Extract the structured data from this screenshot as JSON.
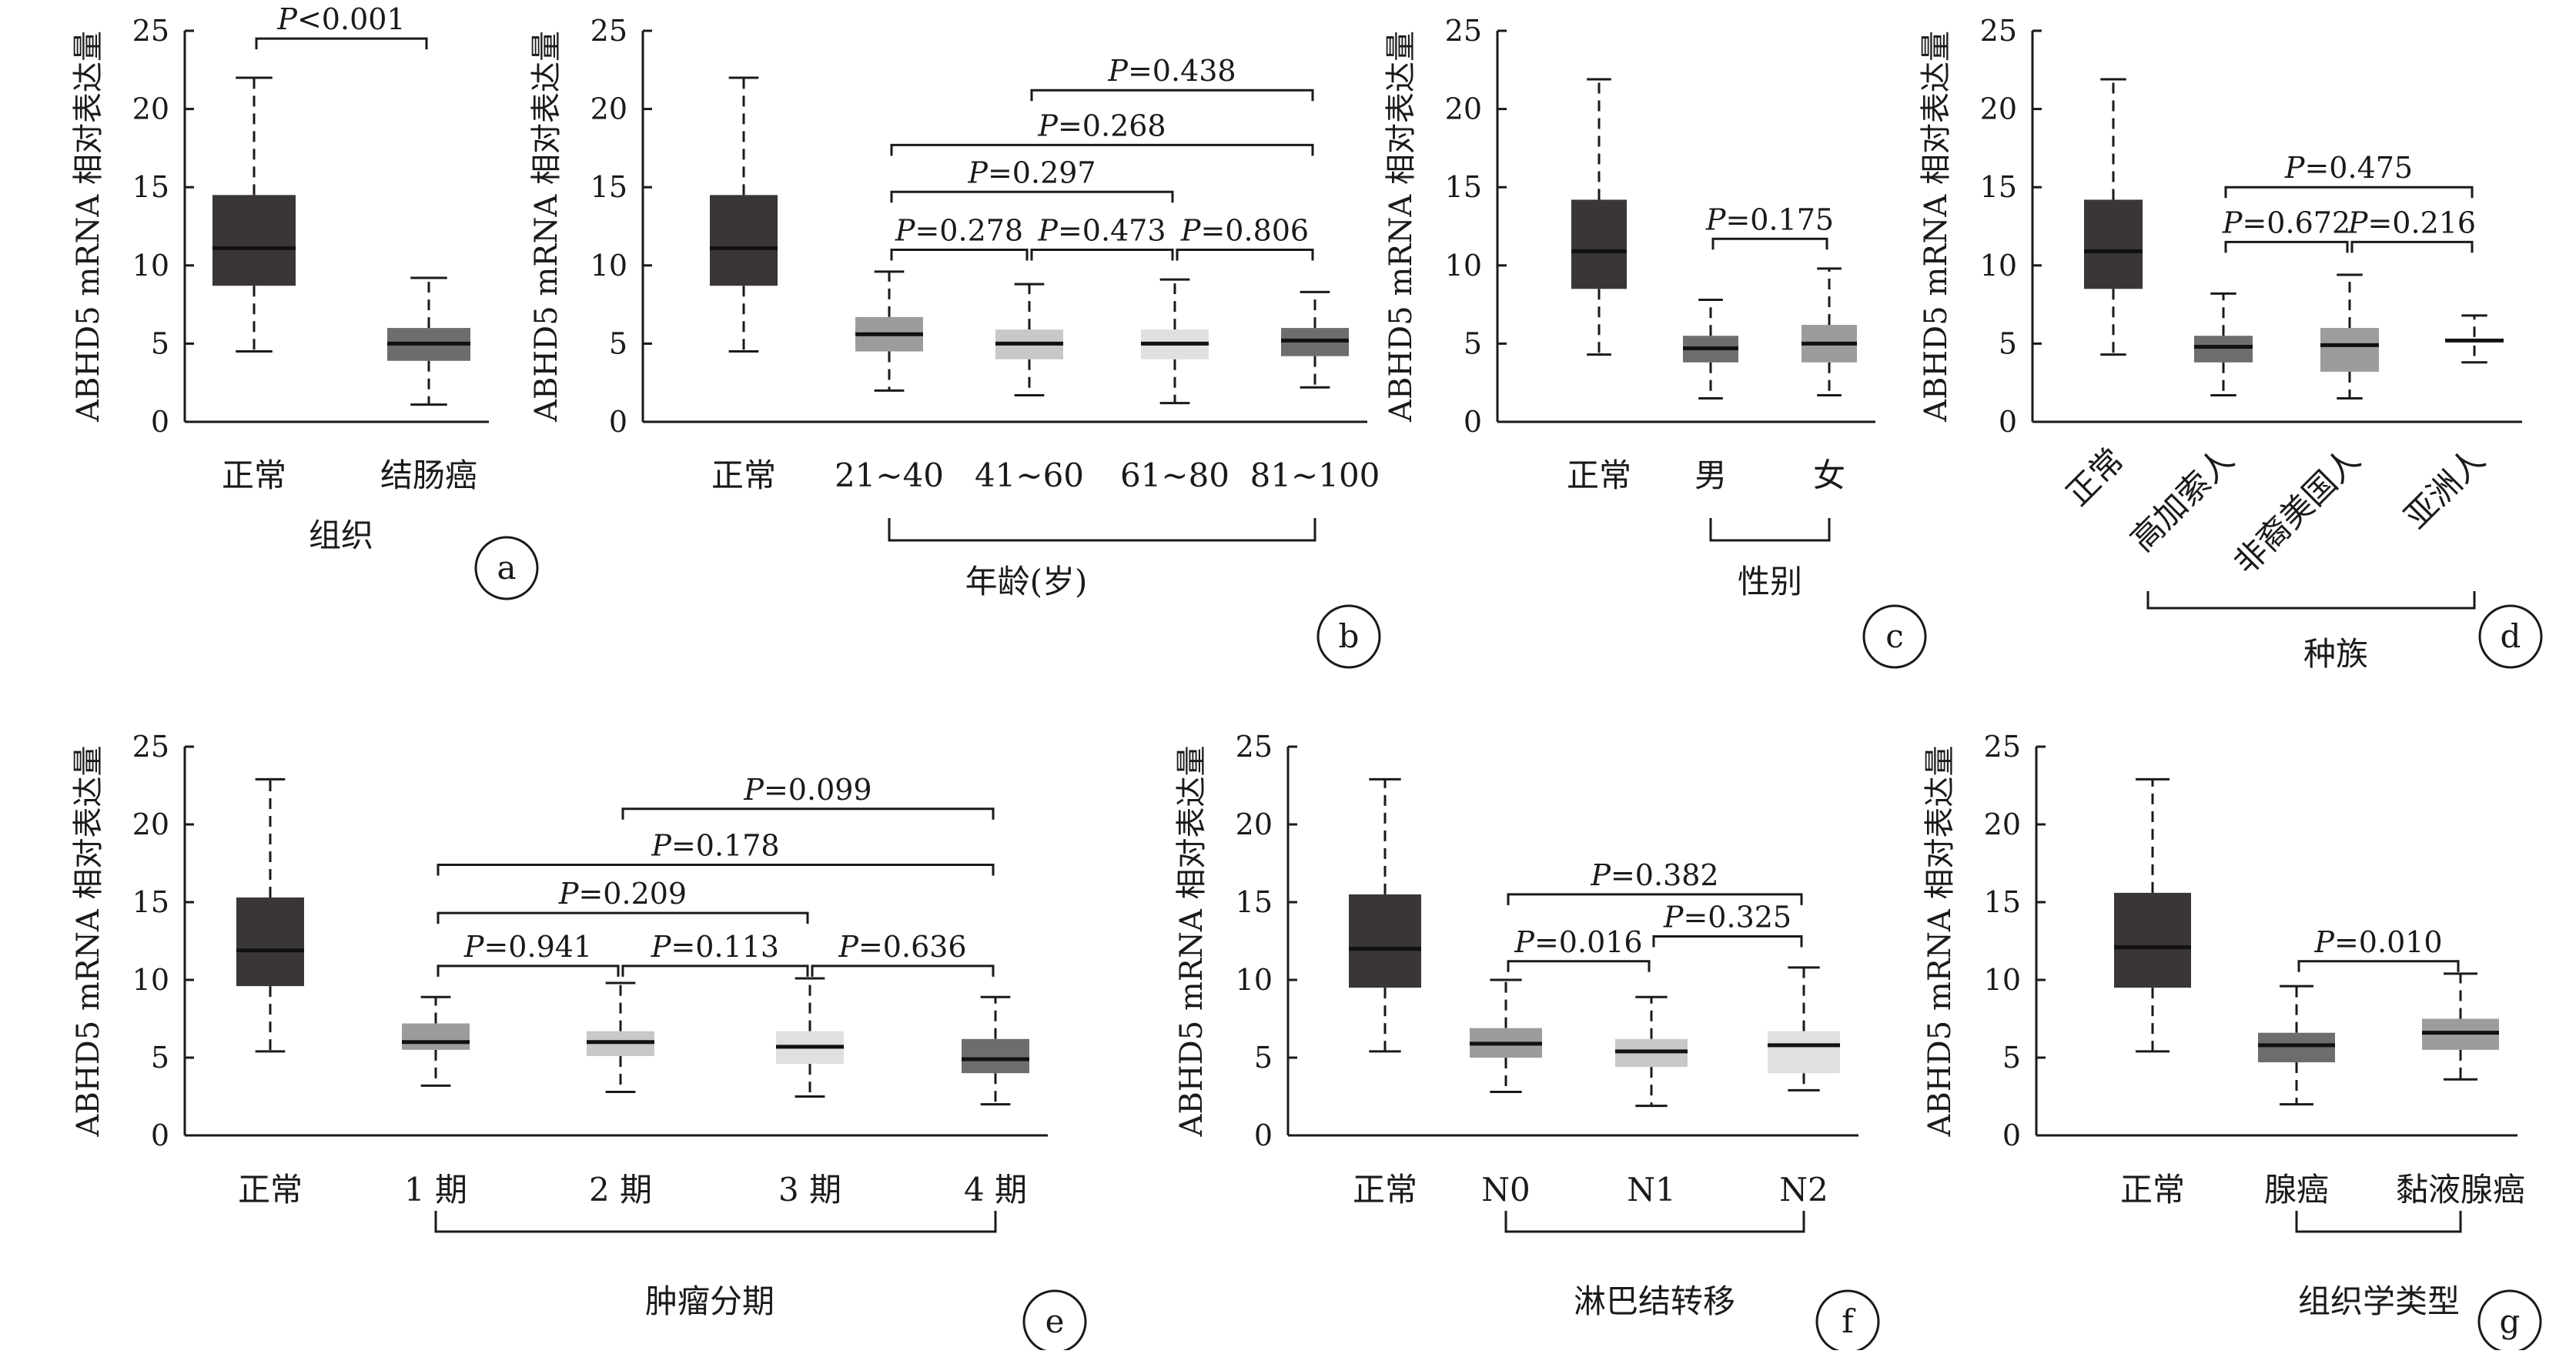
{
  "chart_data": [
    {
      "panel": "a",
      "type": "box",
      "ylabel": "ABHD5 mRNA 相对表达量",
      "xlabel": "组织",
      "ylim": [
        0,
        25
      ],
      "yticks": [
        "0",
        "5",
        "10",
        "15",
        "20",
        "25"
      ],
      "categories": [
        "正常",
        "结肠癌"
      ],
      "boxes": [
        {
          "min": 4.5,
          "q1": 8.7,
          "median": 11.1,
          "q3": 14.5,
          "max": 22.0,
          "color": "#3a3536"
        },
        {
          "min": 1.1,
          "q1": 3.9,
          "median": 5.0,
          "q3": 6.0,
          "max": 9.2,
          "color": "#6d6d6d"
        }
      ],
      "comparisons": [
        {
          "from": 0,
          "to": 1,
          "p": "<0.001",
          "y": 24.5
        }
      ]
    },
    {
      "panel": "b",
      "type": "box",
      "ylabel": "ABHD5 mRNA 相对表达量",
      "xlabel": "年龄(岁)",
      "ylim": [
        0,
        25
      ],
      "yticks": [
        "0",
        "5",
        "10",
        "15",
        "20",
        "25"
      ],
      "categories": [
        "正常",
        "21~40",
        "41~60",
        "61~80",
        "81~100"
      ],
      "boxes": [
        {
          "min": 4.5,
          "q1": 8.7,
          "median": 11.1,
          "q3": 14.5,
          "max": 22.0,
          "color": "#3a3536"
        },
        {
          "min": 2.0,
          "q1": 4.5,
          "median": 5.6,
          "q3": 6.7,
          "max": 9.6,
          "color": "#9c9c9c"
        },
        {
          "min": 1.7,
          "q1": 4.0,
          "median": 5.0,
          "q3": 5.9,
          "max": 8.8,
          "color": "#c8c8c8"
        },
        {
          "min": 1.2,
          "q1": 4.0,
          "median": 5.0,
          "q3": 5.9,
          "max": 9.1,
          "color": "#e0e0e0"
        },
        {
          "min": 2.2,
          "q1": 4.2,
          "median": 5.2,
          "q3": 6.0,
          "max": 8.3,
          "color": "#6d6d6d"
        }
      ],
      "comparisons": [
        {
          "from": 1,
          "to": 2,
          "p": "=0.278",
          "y": 11.0
        },
        {
          "from": 2,
          "to": 3,
          "p": "=0.473",
          "y": 11.0
        },
        {
          "from": 3,
          "to": 4,
          "p": "=0.806",
          "y": 11.0
        },
        {
          "from": 1,
          "to": 3,
          "p": "=0.297",
          "y": 14.7
        },
        {
          "from": 1,
          "to": 4,
          "p": "=0.268",
          "y": 17.7
        },
        {
          "from": 2,
          "to": 4,
          "p": "=0.438",
          "y": 21.2
        }
      ]
    },
    {
      "panel": "c",
      "type": "box",
      "ylabel": "ABHD5 mRNA 相对表达量",
      "xlabel": "性别",
      "ylim": [
        0,
        25
      ],
      "yticks": [
        "0",
        "5",
        "10",
        "15",
        "20",
        "25"
      ],
      "categories": [
        "正常",
        "男",
        "女"
      ],
      "boxes": [
        {
          "min": 4.3,
          "q1": 8.5,
          "median": 10.9,
          "q3": 14.2,
          "max": 21.9,
          "color": "#3a3536"
        },
        {
          "min": 1.5,
          "q1": 3.8,
          "median": 4.7,
          "q3": 5.5,
          "max": 7.8,
          "color": "#6d6d6d"
        },
        {
          "min": 1.7,
          "q1": 3.8,
          "median": 5.0,
          "q3": 6.2,
          "max": 9.8,
          "color": "#9c9c9c"
        }
      ],
      "comparisons": [
        {
          "from": 1,
          "to": 2,
          "p": "=0.175",
          "y": 11.7
        }
      ]
    },
    {
      "panel": "d",
      "type": "box",
      "ylabel": "ABHD5 mRNA 相对表达量",
      "xlabel": "种族",
      "ylim": [
        0,
        25
      ],
      "yticks": [
        "0",
        "5",
        "10",
        "15",
        "20",
        "25"
      ],
      "categories": [
        "正常",
        "高加索人",
        "非裔美国人",
        "亚洲人"
      ],
      "boxes": [
        {
          "min": 4.3,
          "q1": 8.5,
          "median": 10.9,
          "q3": 14.2,
          "max": 21.9,
          "color": "#3a3536"
        },
        {
          "min": 1.7,
          "q1": 3.8,
          "median": 4.8,
          "q3": 5.5,
          "max": 8.2,
          "color": "#6d6d6d"
        },
        {
          "min": 1.5,
          "q1": 3.2,
          "median": 4.9,
          "q3": 6.0,
          "max": 9.4,
          "color": "#9c9c9c"
        },
        {
          "min": 3.8,
          "q1": 4.9,
          "median": 5.2,
          "q3": 5.4,
          "max": 6.8,
          "color": "#ffffff"
        }
      ],
      "comparisons": [
        {
          "from": 1,
          "to": 2,
          "p": "=0.672",
          "y": 11.5
        },
        {
          "from": 2,
          "to": 3,
          "p": "=0.216",
          "y": 11.5
        },
        {
          "from": 1,
          "to": 3,
          "p": "=0.475",
          "y": 15.0
        }
      ]
    },
    {
      "panel": "e",
      "type": "box",
      "ylabel": "ABHD5 mRNA 相对表达量",
      "xlabel": "肿瘤分期",
      "ylim": [
        0,
        25
      ],
      "yticks": [
        "0",
        "5",
        "10",
        "15",
        "20",
        "25"
      ],
      "categories": [
        "正常",
        "1 期",
        "2 期",
        "3 期",
        "4 期"
      ],
      "boxes": [
        {
          "min": 5.4,
          "q1": 9.6,
          "median": 11.9,
          "q3": 15.3,
          "max": 22.9,
          "color": "#3a3536"
        },
        {
          "min": 3.2,
          "q1": 5.5,
          "median": 6.0,
          "q3": 7.2,
          "max": 8.9,
          "color": "#9c9c9c"
        },
        {
          "min": 2.8,
          "q1": 5.1,
          "median": 6.0,
          "q3": 6.7,
          "max": 9.8,
          "color": "#c8c8c8"
        },
        {
          "min": 2.5,
          "q1": 4.6,
          "median": 5.7,
          "q3": 6.7,
          "max": 10.1,
          "color": "#e0e0e0"
        },
        {
          "min": 2.0,
          "q1": 4.0,
          "median": 4.9,
          "q3": 6.2,
          "max": 8.9,
          "color": "#6d6d6d"
        }
      ],
      "comparisons": [
        {
          "from": 1,
          "to": 2,
          "p": "=0.941",
          "y": 10.9
        },
        {
          "from": 2,
          "to": 3,
          "p": "=0.113",
          "y": 10.9
        },
        {
          "from": 3,
          "to": 4,
          "p": "=0.636",
          "y": 10.9
        },
        {
          "from": 1,
          "to": 3,
          "p": "=0.209",
          "y": 14.3
        },
        {
          "from": 1,
          "to": 4,
          "p": "=0.178",
          "y": 17.4
        },
        {
          "from": 2,
          "to": 4,
          "p": "=0.099",
          "y": 21.0
        }
      ]
    },
    {
      "panel": "f",
      "type": "box",
      "ylabel": "ABHD5 mRNA 相对表达量",
      "xlabel": "淋巴结转移",
      "ylim": [
        0,
        25
      ],
      "yticks": [
        "0",
        "5",
        "10",
        "15",
        "20",
        "25"
      ],
      "categories": [
        "正常",
        "N0",
        "N1",
        "N2"
      ],
      "boxes": [
        {
          "min": 5.4,
          "q1": 9.5,
          "median": 12.0,
          "q3": 15.5,
          "max": 22.9,
          "color": "#3a3536"
        },
        {
          "min": 2.8,
          "q1": 5.0,
          "median": 5.9,
          "q3": 6.9,
          "max": 10.0,
          "color": "#9c9c9c"
        },
        {
          "min": 1.9,
          "q1": 4.4,
          "median": 5.4,
          "q3": 6.2,
          "max": 8.9,
          "color": "#c8c8c8"
        },
        {
          "min": 2.9,
          "q1": 4.0,
          "median": 5.8,
          "q3": 6.7,
          "max": 10.8,
          "color": "#e0e0e0"
        }
      ],
      "comparisons": [
        {
          "from": 1,
          "to": 2,
          "p": "=0.016",
          "y": 11.2
        },
        {
          "from": 2,
          "to": 3,
          "p": "=0.325",
          "y": 12.8
        },
        {
          "from": 1,
          "to": 3,
          "p": "=0.382",
          "y": 15.5
        }
      ]
    },
    {
      "panel": "g",
      "type": "box",
      "ylabel": "ABHD5 mRNA 相对表达量",
      "xlabel": "组织学类型",
      "ylim": [
        0,
        25
      ],
      "yticks": [
        "0",
        "5",
        "10",
        "15",
        "20",
        "25"
      ],
      "categories": [
        "正常",
        "腺癌",
        "黏液腺癌"
      ],
      "boxes": [
        {
          "min": 5.4,
          "q1": 9.5,
          "median": 12.1,
          "q3": 15.6,
          "max": 22.9,
          "color": "#3a3536"
        },
        {
          "min": 2.0,
          "q1": 4.7,
          "median": 5.8,
          "q3": 6.6,
          "max": 9.6,
          "color": "#6d6d6d"
        },
        {
          "min": 3.6,
          "q1": 5.5,
          "median": 6.6,
          "q3": 7.5,
          "max": 10.4,
          "color": "#9c9c9c"
        }
      ],
      "comparisons": [
        {
          "from": 1,
          "to": 2,
          "p": "=0.010",
          "y": 11.2
        }
      ]
    }
  ]
}
